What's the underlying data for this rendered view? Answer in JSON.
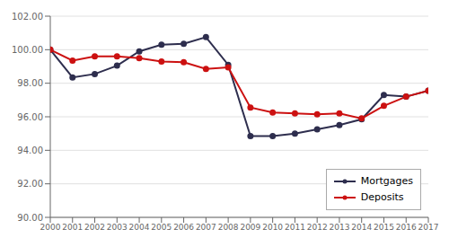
{
  "chart_data": {
    "type": "line",
    "x": [
      2000,
      2001,
      2002,
      2003,
      2004,
      2005,
      2006,
      2007,
      2008,
      2009,
      2010,
      2011,
      2012,
      2013,
      2014,
      2015,
      2016,
      2017
    ],
    "xlim": [
      2000,
      2017
    ],
    "xticks": [
      2000,
      2001,
      2002,
      2003,
      2004,
      2005,
      2006,
      2007,
      2008,
      2009,
      2010,
      2011,
      2012,
      2013,
      2014,
      2015,
      2016,
      2017
    ],
    "ylim": [
      90.0,
      102.0
    ],
    "yticks": [
      {
        "value": 90.0,
        "label": "90.00"
      },
      {
        "value": 92.0,
        "label": "92.00"
      },
      {
        "value": 94.0,
        "label": "94.00"
      },
      {
        "value": 96.0,
        "label": "96.00"
      },
      {
        "value": 98.0,
        "label": "98.00"
      },
      {
        "value": 100.0,
        "label": "100.00"
      },
      {
        "value": 102.0,
        "label": "102.00"
      }
    ],
    "series": [
      {
        "name": "Mortgages",
        "color": "#2e2e4e",
        "marker": "circle",
        "values": [
          100.0,
          98.35,
          98.55,
          99.05,
          99.9,
          100.3,
          100.35,
          100.75,
          99.1,
          94.85,
          94.85,
          95.0,
          95.25,
          95.5,
          95.85,
          97.3,
          97.2,
          97.55
        ]
      },
      {
        "name": "Deposits",
        "color": "#cc1111",
        "marker": "circle",
        "values": [
          100.0,
          99.35,
          99.6,
          99.6,
          99.5,
          99.3,
          99.25,
          98.85,
          98.95,
          96.55,
          96.25,
          96.2,
          96.15,
          96.2,
          95.9,
          96.65,
          97.2,
          97.55
        ]
      }
    ],
    "grid": true,
    "legend": "lower right"
  }
}
